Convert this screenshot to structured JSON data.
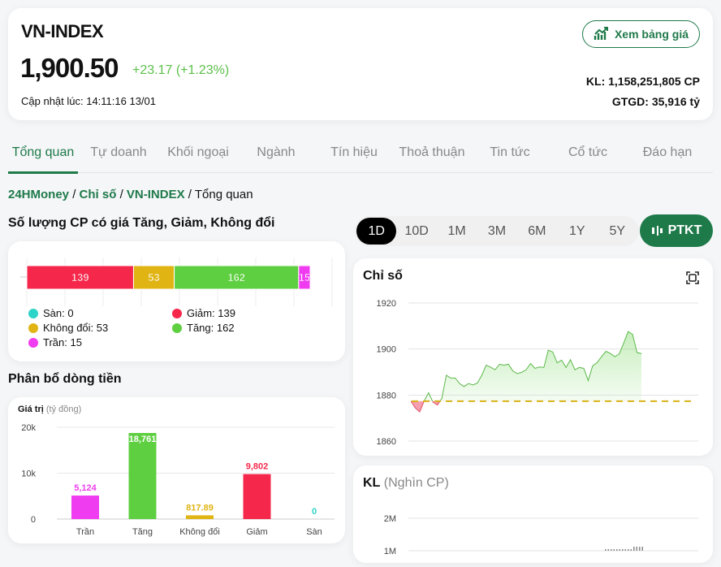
{
  "header": {
    "title": "VN-INDEX",
    "price": "1,900.50",
    "change": "+23.17 (+1.23%)",
    "updated": "Cập nhật lúc: 14:11:16 13/01",
    "view_board": "Xem bảng giá",
    "volume": "KL: 1,158,251,805 CP",
    "value": "GTGD: 35,916 tỷ"
  },
  "tabs": [
    {
      "label": "Tổng quan",
      "active": true
    },
    {
      "label": "Tự doanh"
    },
    {
      "label": "Khối ngoại"
    },
    {
      "label": "Ngành"
    },
    {
      "label": "Tín hiệu"
    },
    {
      "label": "Thoả thuận"
    },
    {
      "label": "Tin tức"
    },
    {
      "label": "Cổ tức"
    },
    {
      "label": "Đáo hạn"
    }
  ],
  "breadcrumb": {
    "items": [
      "24HMoney",
      "Chỉ số",
      "VN-INDEX"
    ],
    "current": "Tổng quan",
    "sep": "/"
  },
  "count_section": {
    "title": "Số lượng CP có giá Tăng, Giảm, Không đổi"
  },
  "flow_section": {
    "title": "Phân bổ dòng tiền"
  },
  "colors": {
    "san": "#2dd4c8",
    "giam": "#f5284b",
    "khongdoi": "#e0b413",
    "tang": "#5fcf42",
    "tran": "#f03cf0",
    "accent": "#1f7a4a"
  },
  "ranges": {
    "options": [
      "1D",
      "10D",
      "1M",
      "3M",
      "6M",
      "1Y",
      "5Y"
    ],
    "selected": "1D",
    "ptkt": "PTKT"
  },
  "chart_data": [
    {
      "type": "bar",
      "stacked": true,
      "orientation": "horizontal",
      "categories": [
        "Sàn",
        "Giảm",
        "Không đổi",
        "Tăng",
        "Trần"
      ],
      "values": [
        0,
        139,
        53,
        162,
        15
      ],
      "legend": [
        "Sàn: 0",
        "Giảm: 139",
        "Không đổi: 53",
        "Tăng: 162",
        "Trần: 15"
      ]
    },
    {
      "type": "bar",
      "ylabel": "Giá trị",
      "yunit": "(tỷ đồng)",
      "categories": [
        "Trần",
        "Tăng",
        "Không đổi",
        "Giảm",
        "Sàn"
      ],
      "values": [
        5124,
        18761,
        817.89,
        9802,
        0
      ],
      "labels": [
        "5,124",
        "18,761",
        "817.89",
        "9,802",
        "0"
      ],
      "yticks": [
        "0",
        "10k",
        "20k"
      ],
      "ylim": [
        0,
        20000
      ]
    },
    {
      "type": "area",
      "title": "Chỉ số",
      "ylim": [
        1860,
        1920
      ],
      "yticks": [
        1860,
        1880,
        1900,
        1920
      ],
      "reference": 1877.33,
      "values": [
        1877.4,
        1874.4,
        1872.7,
        1877.4,
        1881,
        1876.9,
        1875.7,
        1878.6,
        1888.6,
        1887.4,
        1887.4,
        1885,
        1883.7,
        1885,
        1884.4,
        1885.2,
        1888.6,
        1893,
        1892.1,
        1891,
        1893.4,
        1893,
        1893.4,
        1890.5,
        1889.3,
        1889.9,
        1891,
        1893.7,
        1891.6,
        1892.2,
        1892,
        1899.5,
        1898.7,
        1894,
        1895.2,
        1892,
        1895.4,
        1891,
        1892,
        1891.6,
        1886.3,
        1892.7,
        1894.1,
        1896.7,
        1899,
        1898.1,
        1896.7,
        1897.9,
        1902.6,
        1907.6,
        1906.4,
        1898.5,
        1898.0
      ],
      "expand_icon": "expand-icon"
    },
    {
      "type": "bar",
      "title": "KL",
      "unit": "(Nghìn CP)",
      "yticks": [
        "2M",
        "1M"
      ]
    }
  ]
}
